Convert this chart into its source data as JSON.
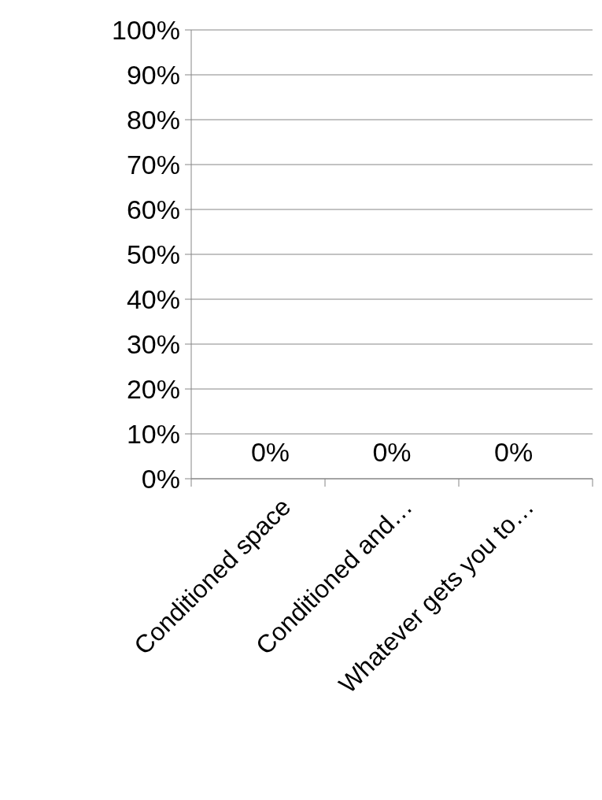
{
  "chart_data": {
    "type": "bar",
    "categories": [
      "Conditioned space",
      "Conditioned and…",
      "Whatever gets you to…"
    ],
    "values": [
      0,
      0,
      0
    ],
    "value_labels": [
      "0%",
      "0%",
      "0%"
    ],
    "ylim": [
      0,
      100
    ],
    "yticks": [
      {
        "value": 0,
        "label": "0%"
      },
      {
        "value": 10,
        "label": "10%"
      },
      {
        "value": 20,
        "label": "20%"
      },
      {
        "value": 30,
        "label": "30%"
      },
      {
        "value": 40,
        "label": "40%"
      },
      {
        "value": 50,
        "label": "50%"
      },
      {
        "value": 60,
        "label": "60%"
      },
      {
        "value": 70,
        "label": "70%"
      },
      {
        "value": 80,
        "label": "80%"
      },
      {
        "value": 90,
        "label": "90%"
      },
      {
        "value": 100,
        "label": "100%"
      }
    ],
    "grid": "y"
  }
}
